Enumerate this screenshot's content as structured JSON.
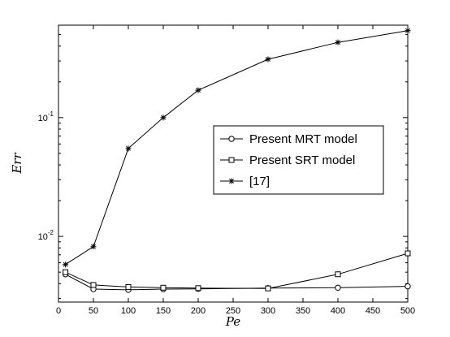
{
  "chart_data": {
    "type": "line",
    "xlabel": "Pe",
    "ylabel": "Err",
    "x_scale": "linear",
    "y_scale": "log",
    "xlim": [
      0,
      500
    ],
    "ylim": [
      0.0028,
      0.6
    ],
    "x_ticks": [
      0,
      50,
      100,
      150,
      200,
      250,
      300,
      350,
      400,
      450,
      500
    ],
    "y_ticks": [
      {
        "value": 0.01,
        "base": "10",
        "exp": "-2"
      },
      {
        "value": 0.1,
        "base": "10",
        "exp": "-1"
      }
    ],
    "grid": false,
    "legend_position": "right-middle",
    "series": [
      {
        "name": "Present MRT model",
        "marker": "circle",
        "x": [
          10,
          50,
          100,
          150,
          200,
          300,
          400,
          500
        ],
        "y": [
          0.0048,
          0.0036,
          0.00355,
          0.0036,
          0.00362,
          0.00367,
          0.0037,
          0.0038
        ]
      },
      {
        "name": "Present SRT model",
        "marker": "square",
        "x": [
          10,
          50,
          100,
          150,
          200,
          300,
          400,
          500
        ],
        "y": [
          0.005,
          0.0039,
          0.00375,
          0.0037,
          0.00367,
          0.00365,
          0.0048,
          0.0072
        ]
      },
      {
        "name": "[17]",
        "marker": "star",
        "x": [
          10,
          50,
          100,
          150,
          200,
          300,
          400,
          500
        ],
        "y": [
          0.0058,
          0.0082,
          0.055,
          0.1,
          0.17,
          0.31,
          0.43,
          0.54
        ]
      }
    ]
  }
}
